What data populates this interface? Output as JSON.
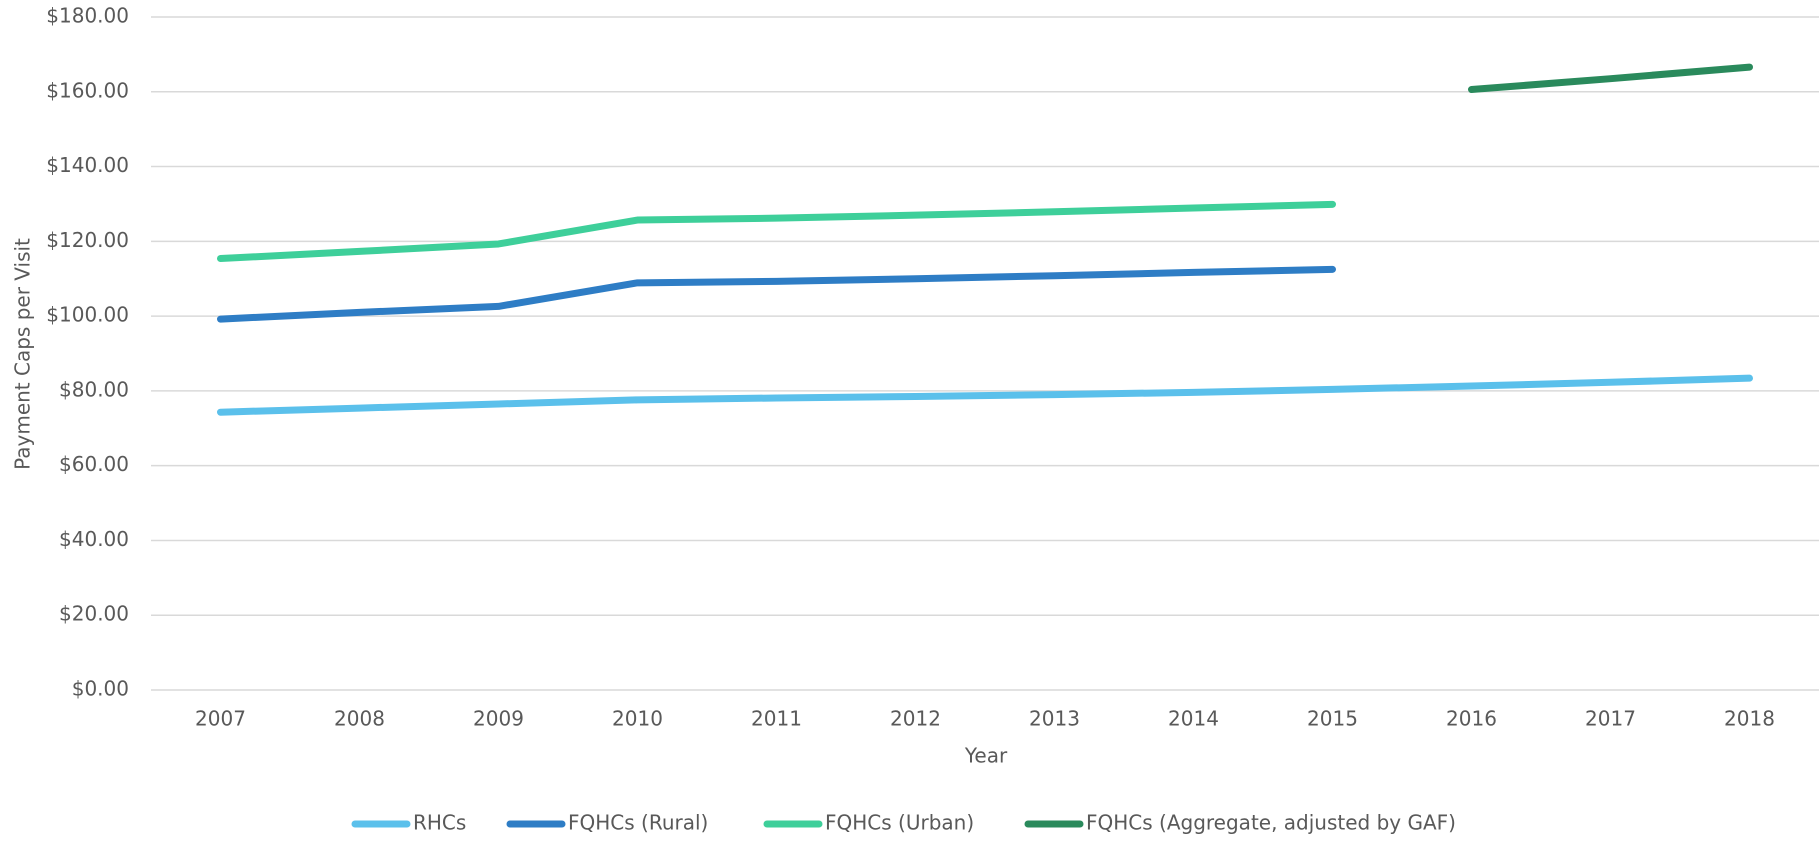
{
  "chart_data": {
    "type": "line",
    "x_label": "Year",
    "y_label": "Payment Caps per Visit",
    "categories": [
      "2007",
      "2008",
      "2009",
      "2010",
      "2011",
      "2012",
      "2013",
      "2014",
      "2015",
      "2016",
      "2017",
      "2018"
    ],
    "series": [
      {
        "name": "RHCs",
        "color": "#5bc0eb",
        "values": [
          74.3,
          75.4,
          76.5,
          77.6,
          78.1,
          78.5,
          79.0,
          79.6,
          80.4,
          81.3,
          82.3,
          83.4
        ]
      },
      {
        "name": "FQHCs (Rural)",
        "color": "#2e7dc5",
        "values": [
          99.2,
          101.0,
          102.6,
          108.9,
          109.3,
          110.0,
          110.8,
          111.7,
          112.5,
          null,
          null,
          null
        ]
      },
      {
        "name": "FQHCs (Urban)",
        "color": "#3ecf9a",
        "values": [
          115.4,
          117.3,
          119.3,
          125.7,
          126.2,
          127.0,
          127.9,
          128.9,
          129.9,
          null,
          null,
          null
        ]
      },
      {
        "name": "FQHCs (Aggregate, adjusted by GAF)",
        "color": "#2a8a5c",
        "values": [
          null,
          null,
          null,
          null,
          null,
          null,
          null,
          null,
          null,
          160.6,
          163.5,
          166.6
        ]
      }
    ],
    "ylim": [
      0,
      180
    ],
    "yticks": [
      {
        "value": 0,
        "label": "$0.00"
      },
      {
        "value": 20,
        "label": "$20.00"
      },
      {
        "value": 40,
        "label": "$40.00"
      },
      {
        "value": 60,
        "label": "$60.00"
      },
      {
        "value": 80,
        "label": "$80.00"
      },
      {
        "value": 100,
        "label": "$100.00"
      },
      {
        "value": 120,
        "label": "$120.00"
      },
      {
        "value": 140,
        "label": "$140.00"
      },
      {
        "value": 160,
        "label": "$160.00"
      },
      {
        "value": 180,
        "label": "$180.00"
      }
    ],
    "grid": true,
    "legend": "bottom"
  }
}
